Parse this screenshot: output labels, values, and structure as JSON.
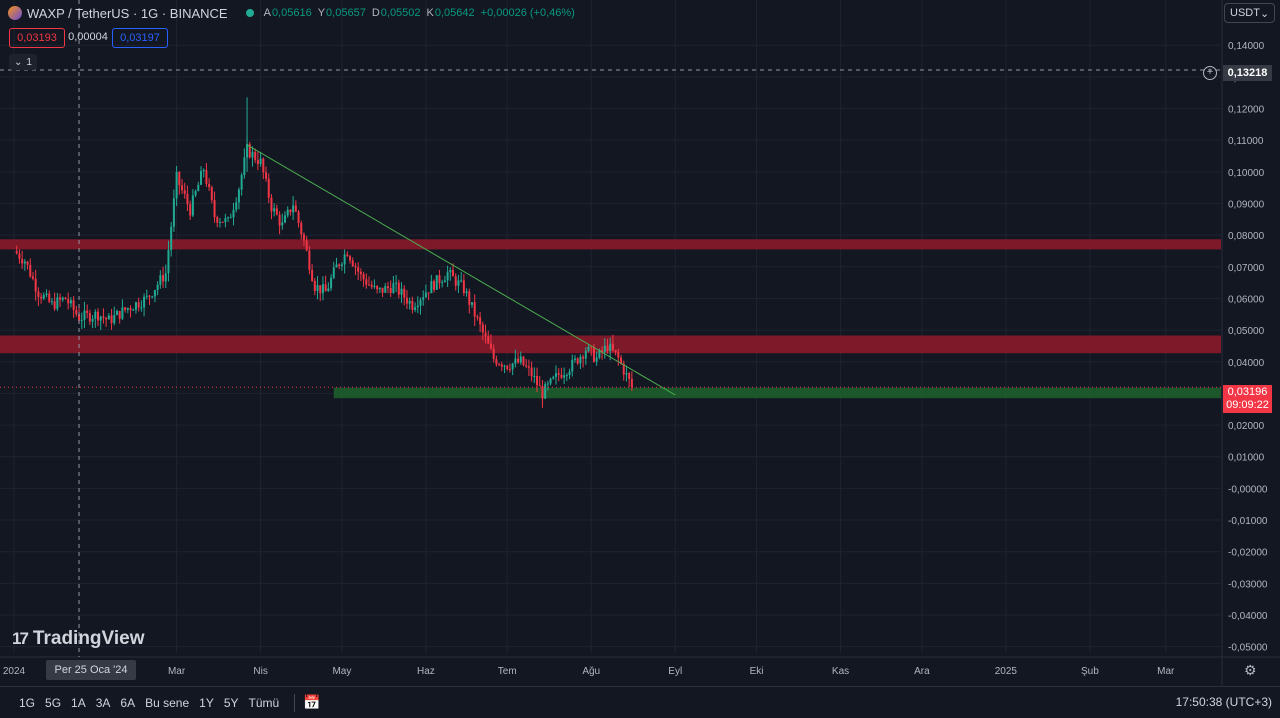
{
  "header": {
    "title": "WAXP / TetherUS · 1G · BINANCE",
    "ohlc": [
      {
        "k": "A",
        "v": "0,05616"
      },
      {
        "k": "Y",
        "v": "0,05657"
      },
      {
        "k": "D",
        "v": "0,05502"
      },
      {
        "k": "K",
        "v": "0,05642"
      },
      {
        "k": "",
        "v": "+0,00026 (+0,46%)"
      }
    ],
    "sell_price": "0,03193",
    "spread": "0,00004",
    "buy_price": "0,03197",
    "indicator_count": "1",
    "currency": "USDT"
  },
  "labels": {
    "crosshair_price": "0,13218",
    "last_price": "0,03196",
    "countdown": "09:09:22",
    "crosshair_date": "Per 25 Oca '24",
    "brand": "TradingView"
  },
  "toolbar": {
    "ranges": [
      "1G",
      "5G",
      "1A",
      "3A",
      "6A",
      "Bu sene",
      "1Y",
      "5Y",
      "Tümü"
    ],
    "clock": "17:50:38 (UTC+3)"
  },
  "colors": {
    "up": "#22ab94",
    "down": "#f23645",
    "resistance_zone": "#8b1a2a",
    "support_zone": "#1e5e2c",
    "trendline": "#4caf50",
    "background": "#131722"
  },
  "chart_data": {
    "type": "candlestick",
    "y_ticks": [
      "0,14000",
      "0,13000",
      "0,12000",
      "0,11000",
      "0,10000",
      "0,09000",
      "0,08000",
      "0,07000",
      "0,06000",
      "0,05000",
      "0,04000",
      "0,03000",
      "0,02000",
      "0,01000",
      "-0,00000",
      "-0,01000",
      "-0,02000",
      "-0,03000",
      "-0,04000",
      "-0,05000"
    ],
    "y_tick_values": [
      0.14,
      0.13,
      0.12,
      0.11,
      0.1,
      0.09,
      0.08,
      0.07,
      0.06,
      0.05,
      0.04,
      0.03,
      0.02,
      0.01,
      0.0,
      -0.01,
      -0.02,
      -0.03,
      -0.04,
      -0.05
    ],
    "ylim": [
      -0.052,
      0.1448
    ],
    "x_ticks": [
      "2024",
      "Mar",
      "Nis",
      "May",
      "Haz",
      "Tem",
      "Ağu",
      "Eyl",
      "Eki",
      "Kas",
      "Ara",
      "2025",
      "Şub",
      "Mar"
    ],
    "x_tick_dates": [
      "2024-01-01",
      "2024-03-01",
      "2024-04-01",
      "2024-05-01",
      "2024-06-01",
      "2024-07-01",
      "2024-08-01",
      "2024-09-01",
      "2024-10-01",
      "2024-11-01",
      "2024-12-01",
      "2025-01-01",
      "2025-02-01",
      "2025-03-01"
    ],
    "price_path": [
      [
        "2024-01-01",
        0.075
      ],
      [
        "2024-01-05",
        0.072
      ],
      [
        "2024-01-10",
        0.062
      ],
      [
        "2024-01-15",
        0.058
      ],
      [
        "2024-01-20",
        0.06
      ],
      [
        "2024-01-25",
        0.054
      ],
      [
        "2024-02-01",
        0.055
      ],
      [
        "2024-02-05",
        0.053
      ],
      [
        "2024-02-12",
        0.057
      ],
      [
        "2024-02-19",
        0.06
      ],
      [
        "2024-02-26",
        0.068
      ],
      [
        "2024-03-01",
        0.098
      ],
      [
        "2024-03-06",
        0.088
      ],
      [
        "2024-03-11",
        0.101
      ],
      [
        "2024-03-15",
        0.086
      ],
      [
        "2024-03-20",
        0.084
      ],
      [
        "2024-03-24",
        0.095
      ],
      [
        "2024-03-27",
        0.107
      ],
      [
        "2024-04-01",
        0.103
      ],
      [
        "2024-04-05",
        0.089
      ],
      [
        "2024-04-09",
        0.083
      ],
      [
        "2024-04-13",
        0.09
      ],
      [
        "2024-04-17",
        0.078
      ],
      [
        "2024-04-21",
        0.064
      ],
      [
        "2024-04-25",
        0.062
      ],
      [
        "2024-04-29",
        0.07
      ],
      [
        "2024-05-03",
        0.075
      ],
      [
        "2024-05-08",
        0.067
      ],
      [
        "2024-05-14",
        0.062
      ],
      [
        "2024-05-20",
        0.064
      ],
      [
        "2024-05-27",
        0.058
      ],
      [
        "2024-06-03",
        0.064
      ],
      [
        "2024-06-09",
        0.068
      ],
      [
        "2024-06-15",
        0.063
      ],
      [
        "2024-06-20",
        0.053
      ],
      [
        "2024-06-26",
        0.041
      ],
      [
        "2024-07-01",
        0.039
      ],
      [
        "2024-07-06",
        0.04
      ],
      [
        "2024-07-10",
        0.036
      ],
      [
        "2024-07-14",
        0.03
      ],
      [
        "2024-07-20",
        0.036
      ],
      [
        "2024-07-25",
        0.039
      ],
      [
        "2024-07-30",
        0.044
      ],
      [
        "2024-08-03",
        0.041
      ],
      [
        "2024-08-07",
        0.045
      ],
      [
        "2024-08-11",
        0.041
      ],
      [
        "2024-08-16",
        0.032
      ]
    ],
    "series": [
      {
        "name": "",
        "kind": "resistance_zone",
        "y_range": [
          0.0755,
          0.0787
        ]
      },
      {
        "name": "",
        "kind": "resistance_zone",
        "y_range": [
          0.0427,
          0.0483
        ]
      },
      {
        "name": "",
        "kind": "support_zone",
        "x_start": "2024-04-28",
        "y_range": [
          0.0285,
          0.0318
        ]
      },
      {
        "name": "",
        "kind": "trendline",
        "points": [
          [
            "2024-03-27",
            0.1085
          ],
          [
            "2024-09-01",
            0.0295
          ]
        ]
      }
    ],
    "crosshair": {
      "date": "2024-01-25",
      "price": 0.13218
    },
    "last_price": 0.03196,
    "grid": true,
    "legend": "none"
  }
}
